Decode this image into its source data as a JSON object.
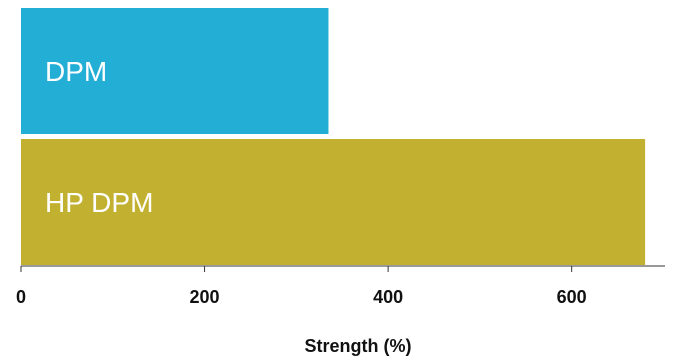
{
  "chart_data": {
    "type": "bar",
    "orientation": "horizontal",
    "categories": [
      "DPM",
      "HP DPM"
    ],
    "values": [
      335,
      680
    ],
    "colors": [
      "#23aed6",
      "#c2b130"
    ],
    "title": "",
    "xlabel": "Strength (%)",
    "ylabel": "",
    "xlim": [
      0,
      700
    ],
    "xticks": [
      0,
      200,
      400,
      600
    ],
    "xtick_labels": [
      "0",
      "200",
      "400",
      "600"
    ],
    "grid": false,
    "legend": "none"
  }
}
